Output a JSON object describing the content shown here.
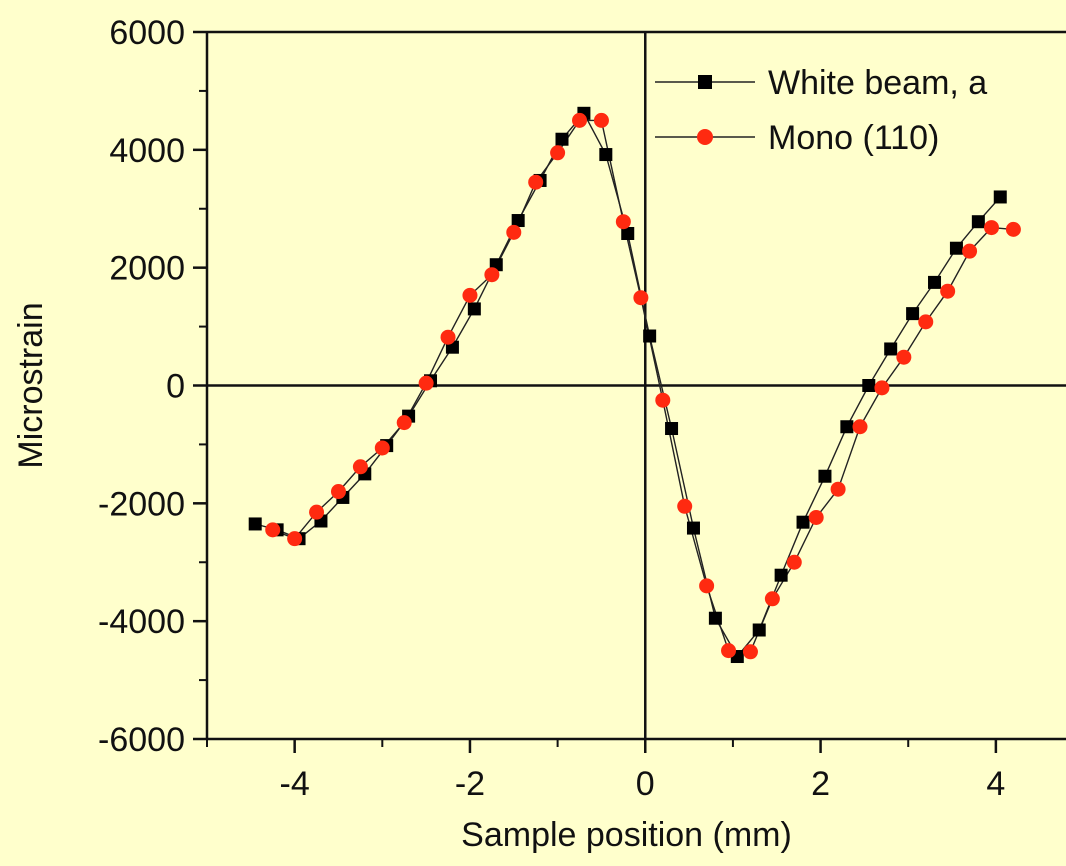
{
  "colors": {
    "background": "#ffffcc",
    "white_beam": "#000000",
    "mono": "#ff2a10",
    "line": "#222222"
  },
  "chart_data": {
    "type": "scatter",
    "xlabel": "Sample position (mm)",
    "ylabel": "Microstrain",
    "xlim": [
      -5,
      4.8
    ],
    "ylim": [
      -6000,
      6000
    ],
    "xticks": [
      -4,
      -2,
      0,
      2,
      4
    ],
    "yticks": [
      -6000,
      -4000,
      -2000,
      0,
      2000,
      4000,
      6000
    ],
    "xtick_labels": [
      "-4",
      "-2",
      "0",
      "2",
      "4"
    ],
    "ytick_labels": [
      "-6000",
      "-4000",
      "-2000",
      "0",
      "2000",
      "4000",
      "6000"
    ],
    "zero_lines": true,
    "legend_position": "top-right",
    "series": [
      {
        "name": "White beam, a",
        "marker": "square",
        "color": "#000000",
        "x": [
          -4.45,
          -4.2,
          -3.95,
          -3.7,
          -3.45,
          -3.2,
          -2.95,
          -2.7,
          -2.45,
          -2.2,
          -1.95,
          -1.7,
          -1.45,
          -1.2,
          -0.95,
          -0.7,
          -0.45,
          -0.2,
          0.05,
          0.3,
          0.55,
          0.8,
          1.05,
          1.3,
          1.55,
          1.8,
          2.05,
          2.3,
          2.55,
          2.8,
          3.05,
          3.3,
          3.55,
          3.8,
          4.05
        ],
        "y": [
          -2350,
          -2450,
          -2600,
          -2300,
          -1900,
          -1500,
          -1020,
          -520,
          80,
          650,
          1300,
          2050,
          2800,
          3480,
          4180,
          4620,
          3920,
          2580,
          840,
          -730,
          -2420,
          -3950,
          -4600,
          -4150,
          -3220,
          -2320,
          -1540,
          -700,
          0,
          620,
          1220,
          1750,
          2330,
          2780,
          3200
        ]
      },
      {
        "name": "Mono (110)",
        "marker": "circle",
        "color": "#ff2a10",
        "x": [
          -4.25,
          -4.0,
          -3.75,
          -3.5,
          -3.25,
          -3.0,
          -2.75,
          -2.5,
          -2.25,
          -2.0,
          -1.75,
          -1.5,
          -1.25,
          -1.0,
          -0.75,
          -0.5,
          -0.25,
          -0.05,
          0.2,
          0.45,
          0.7,
          0.95,
          1.2,
          1.45,
          1.7,
          1.95,
          2.2,
          2.45,
          2.7,
          2.95,
          3.2,
          3.45,
          3.7,
          3.95,
          4.2
        ],
        "y": [
          -2450,
          -2600,
          -2150,
          -1800,
          -1380,
          -1060,
          -630,
          40,
          820,
          1530,
          1880,
          2600,
          3450,
          3950,
          4500,
          4500,
          2780,
          1490,
          -250,
          -2050,
          -3400,
          -4500,
          -4520,
          -3620,
          -3000,
          -2240,
          -1760,
          -700,
          -40,
          480,
          1080,
          1600,
          2280,
          2680,
          2650
        ]
      }
    ]
  }
}
